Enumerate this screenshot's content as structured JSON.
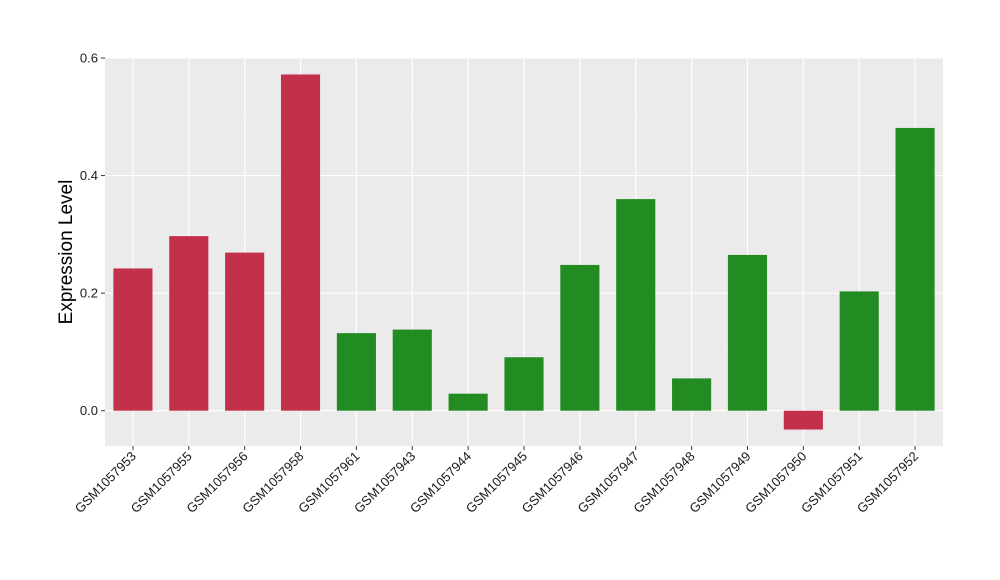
{
  "chart_data": {
    "type": "bar",
    "title": "",
    "xlabel": "",
    "ylabel": "Expression Level",
    "ylim": [
      -0.06,
      0.6
    ],
    "yticks": [
      0.0,
      0.2,
      0.4,
      0.6
    ],
    "ytick_labels": [
      "0.0",
      "0.2",
      "0.4",
      "0.6"
    ],
    "grid": true,
    "legend": "none",
    "categories": [
      "GSM1057953",
      "GSM1057955",
      "GSM1057956",
      "GSM1057958",
      "GSM1057961",
      "GSM1057943",
      "GSM1057944",
      "GSM1057945",
      "GSM1057946",
      "GSM1057947",
      "GSM1057948",
      "GSM1057949",
      "GSM1057950",
      "GSM1057951",
      "GSM1057952"
    ],
    "values": [
      0.242,
      0.297,
      0.269,
      0.572,
      0.132,
      0.138,
      0.029,
      0.091,
      0.248,
      0.36,
      0.055,
      0.265,
      -0.032,
      0.203,
      0.481
    ],
    "colors": [
      "#c3304a",
      "#c3304a",
      "#c3304a",
      "#c3304a",
      "#228b22",
      "#228b22",
      "#228b22",
      "#228b22",
      "#228b22",
      "#228b22",
      "#228b22",
      "#228b22",
      "#c3304a",
      "#228b22",
      "#228b22"
    ]
  }
}
